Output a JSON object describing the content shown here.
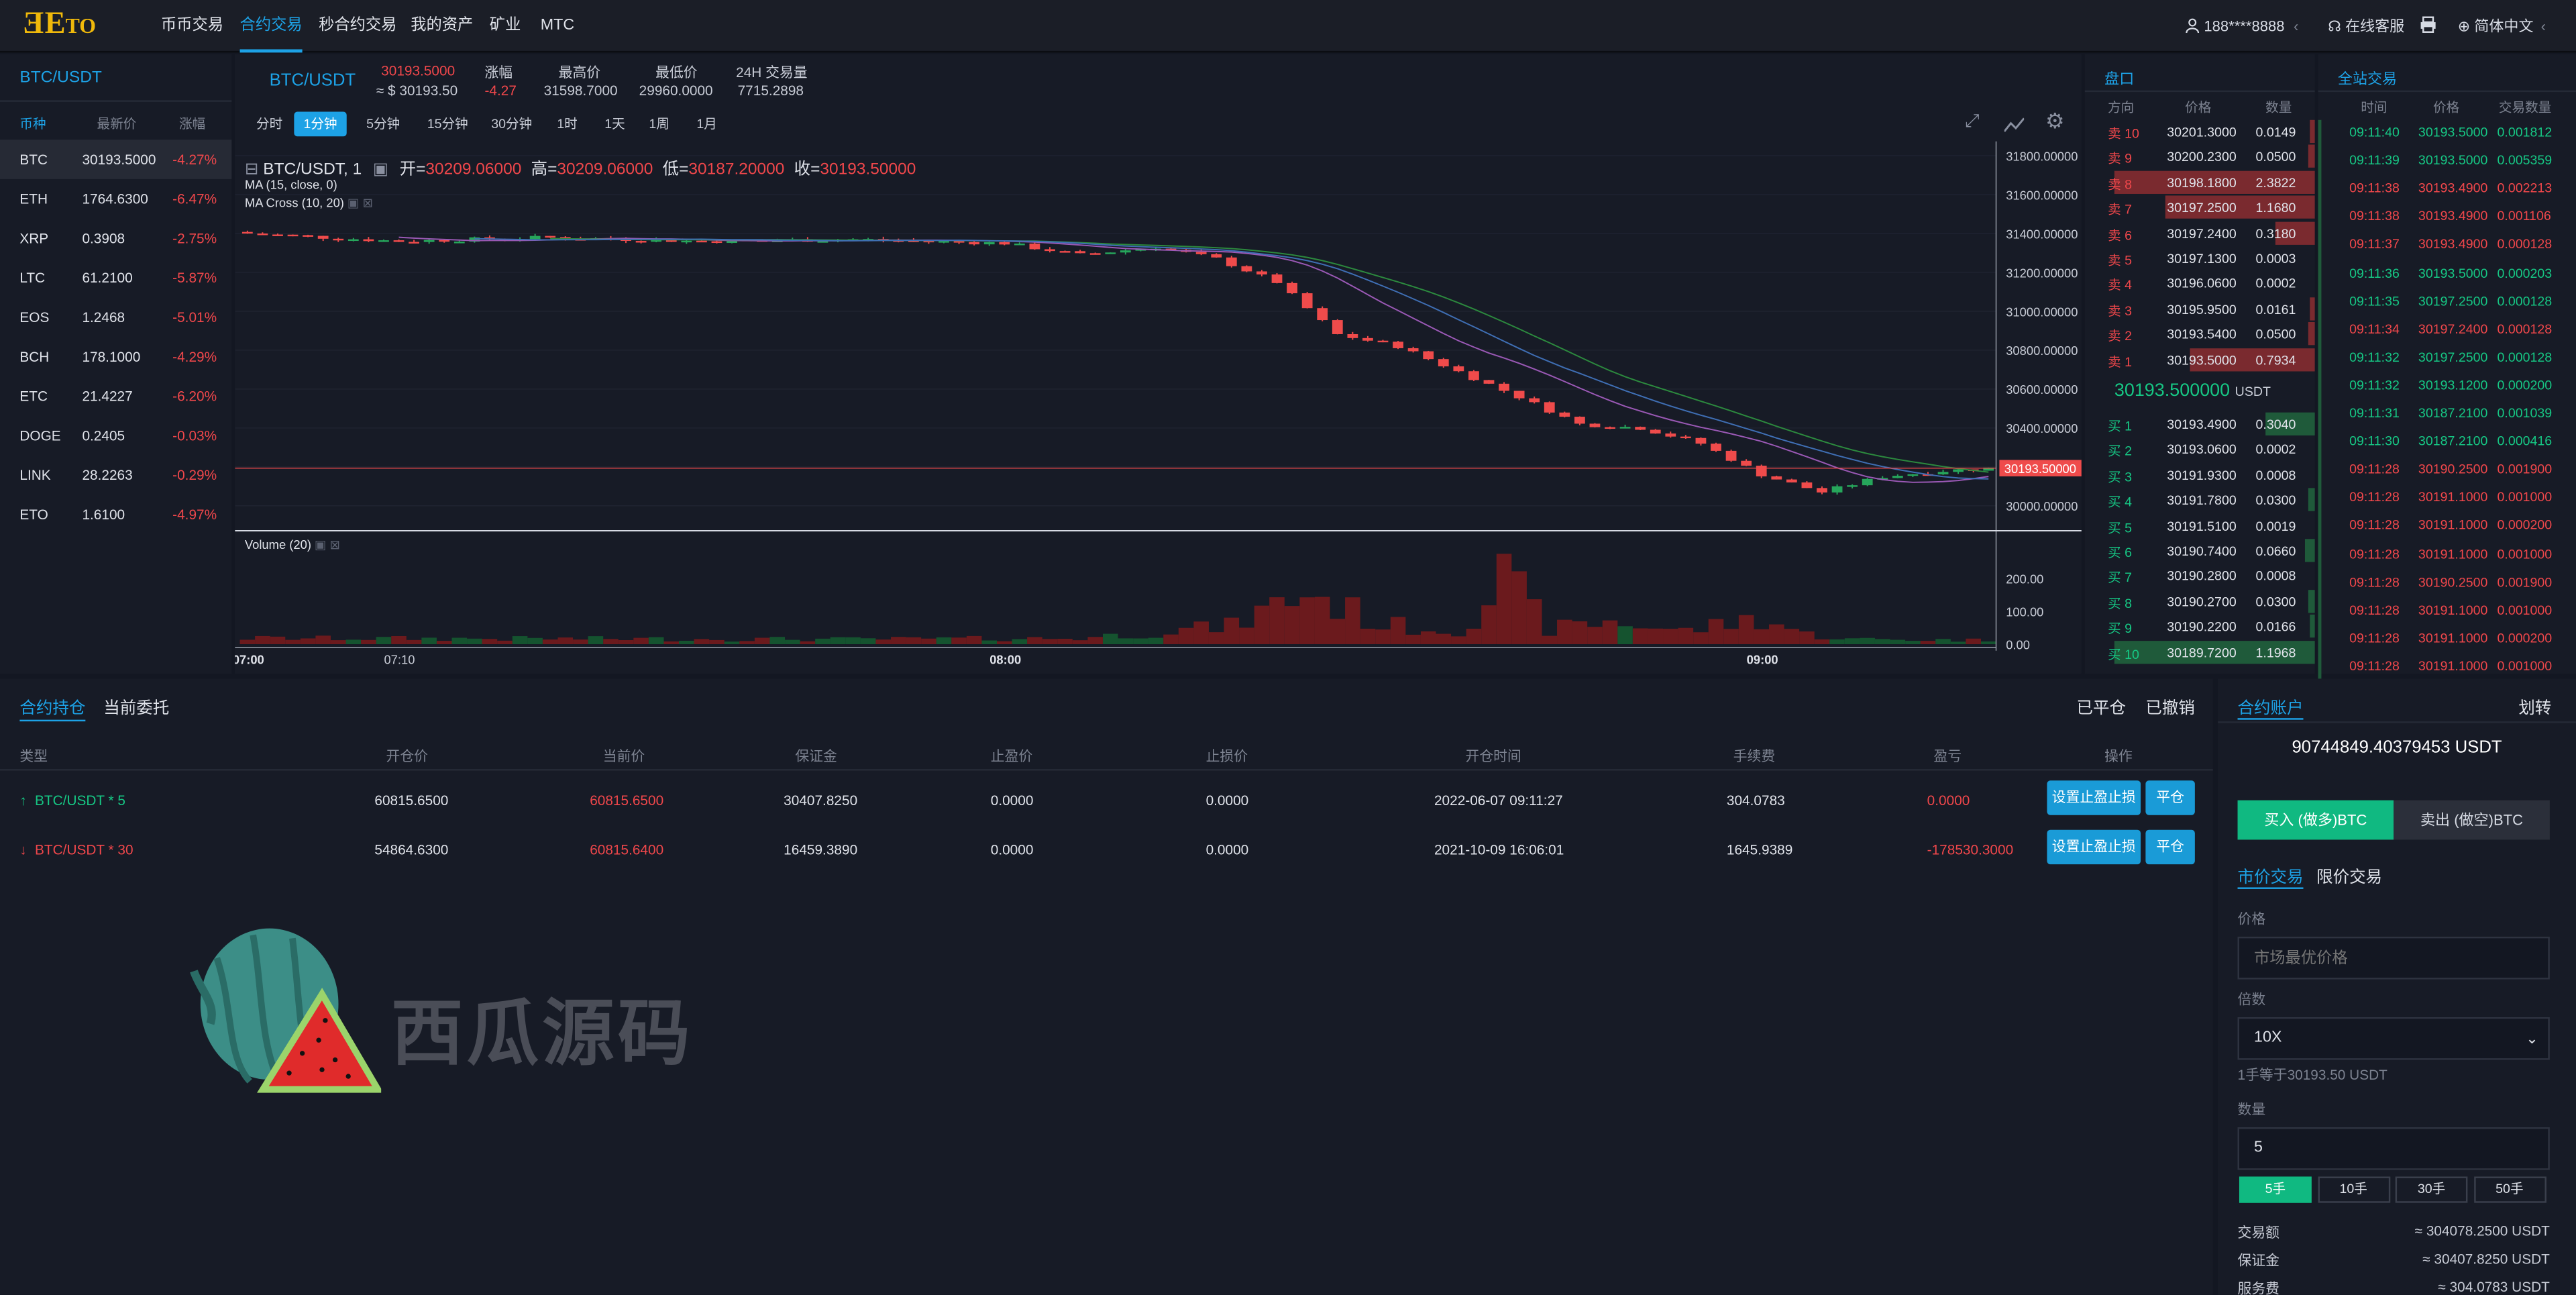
{
  "header": {
    "brand": "Eto",
    "nav": [
      "币币交易",
      "合约交易",
      "秒合约交易",
      "我的资产",
      "矿业",
      "MTC"
    ],
    "user": "188****8888",
    "service": "在线客服",
    "language": "简体中文"
  },
  "market_list": {
    "title": "BTC/USDT",
    "col_coin": "币种",
    "col_price": "最新价",
    "col_change": "涨幅",
    "items": [
      {
        "coin": "BTC",
        "price": "30193.5000",
        "change": "-4.27%"
      },
      {
        "coin": "ETH",
        "price": "1764.6300",
        "change": "-6.47%"
      },
      {
        "coin": "XRP",
        "price": "0.3908",
        "change": "-2.75%"
      },
      {
        "coin": "LTC",
        "price": "61.2100",
        "change": "-5.87%"
      },
      {
        "coin": "EOS",
        "price": "1.2468",
        "change": "-5.01%"
      },
      {
        "coin": "BCH",
        "price": "178.1000",
        "change": "-4.29%"
      },
      {
        "coin": "ETC",
        "price": "21.4227",
        "change": "-6.20%"
      },
      {
        "coin": "DOGE",
        "price": "0.2405",
        "change": "-0.03%"
      },
      {
        "coin": "LINK",
        "price": "28.2263",
        "change": "-0.29%"
      },
      {
        "coin": "ETO",
        "price": "1.6100",
        "change": "-4.97%"
      }
    ]
  },
  "ticker": {
    "pair": "BTC/USDT",
    "price": "30193.5000",
    "price_usd": "≈ $ 30193.50",
    "change_label": "涨幅",
    "change": "-4.27",
    "high_label": "最高价",
    "high": "31598.7000",
    "low_label": "最低价",
    "low": "29960.0000",
    "vol_label": "24H 交易量",
    "vol": "7715.2898"
  },
  "timeframes": [
    "分时",
    "1分钟",
    "5分钟",
    "15分钟",
    "30分钟",
    "1时",
    "1天",
    "1周",
    "1月"
  ],
  "chart_labels": {
    "title": "BTC/USDT, 1",
    "open_l": "开=",
    "open": "30209.06000",
    "high_l": "高=",
    "high": "30209.06000",
    "low_l": "低=",
    "low": "30187.20000",
    "close_l": "收=",
    "close": "30193.50000",
    "ma": "MA (15, close, 0)",
    "macross": "MA Cross (10, 20)",
    "volume": "Volume (20)"
  },
  "chart_data": {
    "type": "candlestick",
    "y_ticks": [
      "31800.00000",
      "31600.00000",
      "31400.00000",
      "31200.00000",
      "31000.00000",
      "30800.00000",
      "30600.00000",
      "30400.00000",
      "30200.00000",
      "30000.00000"
    ],
    "ylim": [
      29880,
      31840
    ],
    "current_price": "30193.50000",
    "vol_ticks": [
      "200.00",
      "100.00",
      "0.00"
    ],
    "vol_max": 240,
    "x_ticks": [
      "07:00",
      "07:10",
      "08:00",
      "09:00"
    ],
    "x_tick_index": [
      0,
      10,
      50,
      100
    ],
    "close_path": [
      [
        0,
        31400
      ],
      [
        10,
        31360
      ],
      [
        20,
        31380
      ],
      [
        30,
        31360
      ],
      [
        40,
        31370
      ],
      [
        50,
        31350
      ],
      [
        55,
        31290
      ],
      [
        60,
        31330
      ],
      [
        64,
        31270
      ],
      [
        68,
        31150
      ],
      [
        72,
        30880
      ],
      [
        76,
        30820
      ],
      [
        80,
        30690
      ],
      [
        84,
        30560
      ],
      [
        88,
        30420
      ],
      [
        92,
        30400
      ],
      [
        96,
        30320
      ],
      [
        100,
        30160
      ],
      [
        104,
        30070
      ],
      [
        108,
        30150
      ],
      [
        112,
        30180
      ],
      [
        115,
        30193
      ]
    ],
    "volume_path": [
      [
        0,
        18
      ],
      [
        40,
        15
      ],
      [
        55,
        18
      ],
      [
        65,
        55
      ],
      [
        70,
        160
      ],
      [
        75,
        60
      ],
      [
        80,
        40
      ],
      [
        83,
        200
      ],
      [
        86,
        45
      ],
      [
        90,
        70
      ],
      [
        95,
        40
      ],
      [
        100,
        80
      ],
      [
        103,
        30
      ],
      [
        106,
        15
      ],
      [
        115,
        12
      ]
    ]
  },
  "orderbook": {
    "title": "盘口",
    "col_dir": "方向",
    "col_price": "价格",
    "col_qty": "数量",
    "asks": [
      {
        "side": "卖 10",
        "price": "30201.3000",
        "qty": "0.0149"
      },
      {
        "side": "卖 9",
        "price": "30200.2300",
        "qty": "0.0500"
      },
      {
        "side": "卖 8",
        "price": "30198.1800",
        "qty": "2.3822"
      },
      {
        "side": "卖 7",
        "price": "30197.2500",
        "qty": "1.1680"
      },
      {
        "side": "卖 6",
        "price": "30197.2400",
        "qty": "0.3180"
      },
      {
        "side": "卖 5",
        "price": "30197.1300",
        "qty": "0.0003"
      },
      {
        "side": "卖 4",
        "price": "30196.0600",
        "qty": "0.0002"
      },
      {
        "side": "卖 3",
        "price": "30195.9500",
        "qty": "0.0161"
      },
      {
        "side": "卖 2",
        "price": "30193.5400",
        "qty": "0.0500"
      },
      {
        "side": "卖 1",
        "price": "30193.5000",
        "qty": "0.7934"
      }
    ],
    "ask_depth": [
      0.01,
      0.03,
      1,
      0.75,
      0.2,
      0,
      0,
      0.02,
      0.03,
      0.62
    ],
    "mid_price": "30193.500000",
    "mid_unit": "USDT",
    "bids": [
      {
        "side": "买 1",
        "price": "30193.4900",
        "qty": "0.3040"
      },
      {
        "side": "买 2",
        "price": "30193.0600",
        "qty": "0.0002"
      },
      {
        "side": "买 3",
        "price": "30191.9300",
        "qty": "0.0008"
      },
      {
        "side": "买 4",
        "price": "30191.7800",
        "qty": "0.0300"
      },
      {
        "side": "买 5",
        "price": "30191.5100",
        "qty": "0.0019"
      },
      {
        "side": "买 6",
        "price": "30190.7400",
        "qty": "0.0660"
      },
      {
        "side": "买 7",
        "price": "30190.2800",
        "qty": "0.0008"
      },
      {
        "side": "买 8",
        "price": "30190.2700",
        "qty": "0.0300"
      },
      {
        "side": "买 9",
        "price": "30190.2200",
        "qty": "0.0166"
      },
      {
        "side": "买 10",
        "price": "30189.7200",
        "qty": "1.1968"
      }
    ],
    "bid_depth": [
      0.25,
      0,
      0,
      0.03,
      0,
      0.05,
      0,
      0.03,
      0.01,
      1
    ]
  },
  "trades": {
    "title": "全站交易",
    "col_time": "时间",
    "col_price": "价格",
    "col_qty": "交易数量",
    "items": [
      {
        "t": "09:11:40",
        "p": "30193.5000",
        "q": "0.001812",
        "s": "b"
      },
      {
        "t": "09:11:39",
        "p": "30193.5000",
        "q": "0.005359",
        "s": "b"
      },
      {
        "t": "09:11:38",
        "p": "30193.4900",
        "q": "0.002213",
        "s": "s"
      },
      {
        "t": "09:11:38",
        "p": "30193.4900",
        "q": "0.001106",
        "s": "s"
      },
      {
        "t": "09:11:37",
        "p": "30193.4900",
        "q": "0.000128",
        "s": "s"
      },
      {
        "t": "09:11:36",
        "p": "30193.5000",
        "q": "0.000203",
        "s": "b"
      },
      {
        "t": "09:11:35",
        "p": "30197.2500",
        "q": "0.000128",
        "s": "b"
      },
      {
        "t": "09:11:34",
        "p": "30197.2400",
        "q": "0.000128",
        "s": "s"
      },
      {
        "t": "09:11:32",
        "p": "30197.2500",
        "q": "0.000128",
        "s": "b"
      },
      {
        "t": "09:11:32",
        "p": "30193.1200",
        "q": "0.000200",
        "s": "b"
      },
      {
        "t": "09:11:31",
        "p": "30187.2100",
        "q": "0.001039",
        "s": "b"
      },
      {
        "t": "09:11:30",
        "p": "30187.2100",
        "q": "0.000416",
        "s": "b"
      },
      {
        "t": "09:11:28",
        "p": "30190.2500",
        "q": "0.001900",
        "s": "s"
      },
      {
        "t": "09:11:28",
        "p": "30191.1000",
        "q": "0.001000",
        "s": "s"
      },
      {
        "t": "09:11:28",
        "p": "30191.1000",
        "q": "0.000200",
        "s": "s"
      },
      {
        "t": "09:11:28",
        "p": "30191.1000",
        "q": "0.001000",
        "s": "s"
      },
      {
        "t": "09:11:28",
        "p": "30190.2500",
        "q": "0.001900",
        "s": "s"
      },
      {
        "t": "09:11:28",
        "p": "30191.1000",
        "q": "0.001000",
        "s": "s"
      },
      {
        "t": "09:11:28",
        "p": "30191.1000",
        "q": "0.000200",
        "s": "s"
      },
      {
        "t": "09:11:28",
        "p": "30191.1000",
        "q": "0.001000",
        "s": "s"
      }
    ]
  },
  "positions": {
    "tab_hold": "合约持仓",
    "tab_orders": "当前委托",
    "closed": "已平仓",
    "cancelled": "已撤销",
    "headers": [
      "类型",
      "开仓价",
      "当前价",
      "保证金",
      "止盈价",
      "止损价",
      "开仓时间",
      "手续费",
      "盈亏",
      "操作"
    ],
    "rows": [
      {
        "type": "BTC/USDT * 5",
        "dir": "up",
        "open": "60815.6500",
        "cur": "60815.6500",
        "margin": "30407.8250",
        "tp": "0.0000",
        "sl": "0.0000",
        "time": "2022-06-07 09:11:27",
        "fee": "304.0783",
        "pnl": "0.0000"
      },
      {
        "type": "BTC/USDT * 30",
        "dir": "down",
        "open": "54864.6300",
        "cur": "60815.6400",
        "margin": "16459.3890",
        "tp": "0.0000",
        "sl": "0.0000",
        "time": "2021-10-09 16:06:01",
        "fee": "1645.9389",
        "pnl": "-178530.3000"
      }
    ],
    "btn_tpsl": "设置止盈止损",
    "btn_close": "平仓"
  },
  "watermark": "西瓜源码",
  "account": {
    "title": "合约账户",
    "transfer": "划转",
    "balance": "90744849.40379453 USDT",
    "buy": "买入 (做多)BTC",
    "sell": "卖出 (做空)BTC",
    "market": "市价交易",
    "limit": "限价交易",
    "price_label": "价格",
    "price_placeholder": "市场最优价格",
    "leverage_label": "倍数",
    "leverage": "10X",
    "hint": "1手等于30193.50 USDT",
    "qty_label": "数量",
    "qty": "5",
    "lots": [
      "5手",
      "10手",
      "30手",
      "50手"
    ],
    "amount_label": "交易额",
    "amount": "≈ 304078.2500 USDT",
    "margin_label": "保证金",
    "margin": "≈ 30407.8250 USDT",
    "fee_label": "服务费",
    "fee": "≈ 304.0783 USDT"
  }
}
